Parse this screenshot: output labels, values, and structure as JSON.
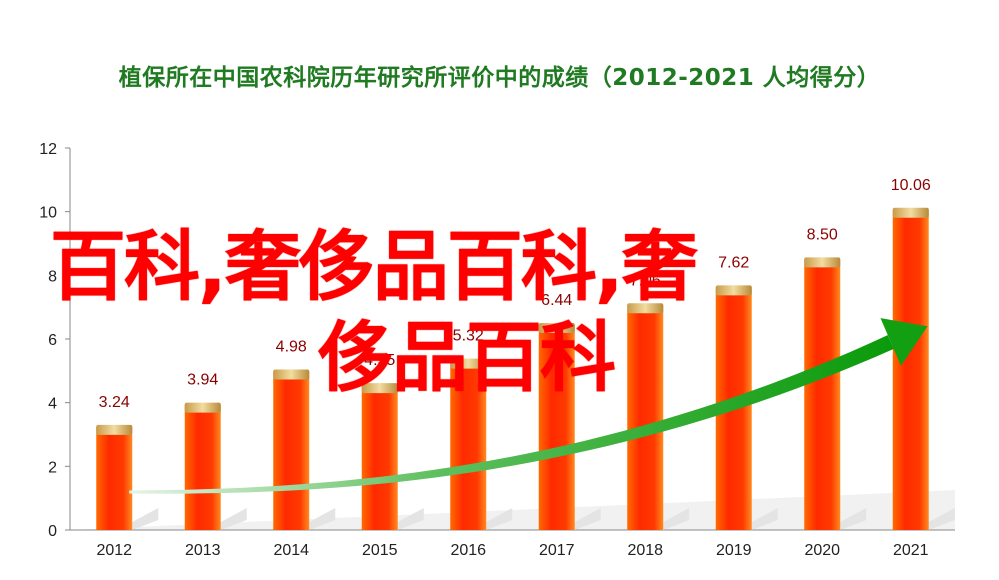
{
  "title": "植保所在中国农科院历年研究所评价中的成绩（2012-2021  人均得分）",
  "overlay_line1": "百科,奢侈品百科,奢",
  "overlay_line2": "侈品百科",
  "colors": {
    "title": "#1f7a22",
    "bar": "#ff3000",
    "cap": "#d4b36a",
    "arrow": "#12a012",
    "overlay": "#ff0000",
    "label": "#8b0000"
  },
  "chart_data": {
    "type": "bar",
    "categories": [
      "2012",
      "2013",
      "2014",
      "2015",
      "2016",
      "2017",
      "2018",
      "2019",
      "2020",
      "2021"
    ],
    "values": [
      3.24,
      3.94,
      4.98,
      4.55,
      5.32,
      6.44,
      7.06,
      7.62,
      8.5,
      10.06
    ],
    "value_labels": [
      "3.24",
      "3.94",
      "4.98",
      "4.55",
      "5.32",
      "6.44",
      "7.06",
      "7.62",
      "8.50",
      "10.06"
    ],
    "ylim": [
      0,
      12
    ],
    "yticks": [
      "0",
      "2",
      "4",
      "6",
      "8",
      "10",
      "12"
    ],
    "grid": false,
    "trend_arrow": true
  }
}
